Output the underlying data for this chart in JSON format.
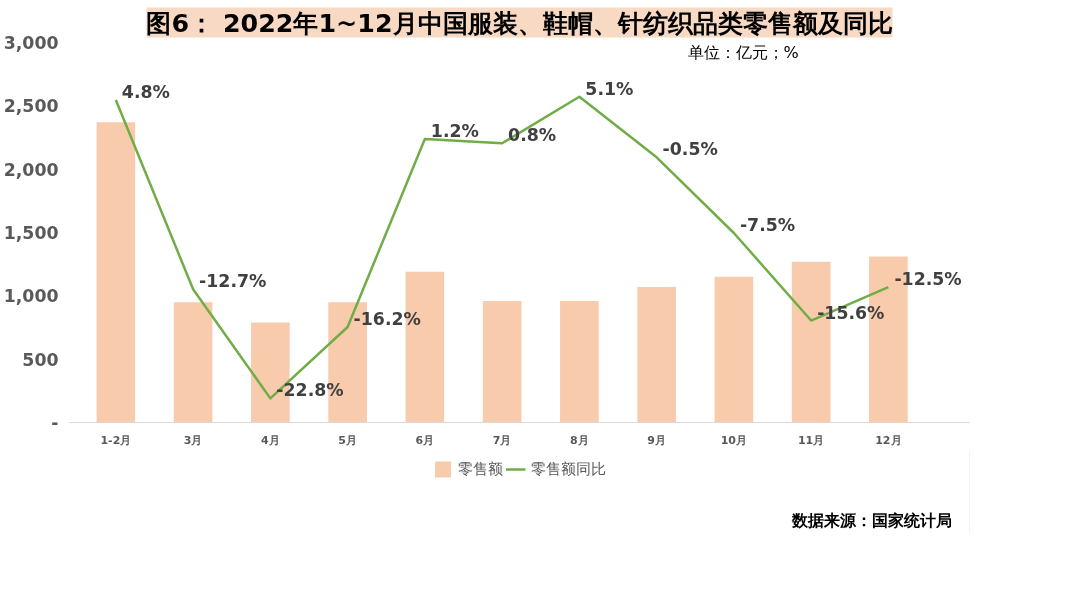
{
  "chart_data": {
    "type": "bar",
    "title": "图6： 2022年1~12月中国服装、鞋帽、针纺织品类零售额及同比",
    "categories": [
      "1-2月",
      "3月",
      "4月",
      "5月",
      "6月",
      "7月",
      "8月",
      "9月",
      "10月",
      "11月",
      "12月"
    ],
    "series": [
      {
        "name": "零售额",
        "color": "#f8cbad",
        "values": [
          2370,
          950,
          790,
          950,
          1190,
          960,
          960,
          1070,
          1150,
          1270,
          1310
        ]
      },
      {
        "name": "零售额同比",
        "type": "line",
        "axis": "y2",
        "color": "#70ad47",
        "values": [
          4.8,
          -12.7,
          -22.8,
          -16.2,
          1.2,
          0.8,
          5.1,
          -0.5,
          -7.5,
          -15.6,
          -12.5
        ],
        "value_labels": [
          "4.8%",
          "-12.7%",
          "-22.8%",
          "-16.2%",
          "1.2%",
          "0.8%",
          "5.1%",
          "-0.5%",
          "-7.5%",
          "-15.6%",
          "-12.5%"
        ]
      }
    ],
    "ylim": [
      0,
      3000
    ],
    "yticks": [
      {
        "value": 0,
        "label": "-"
      },
      {
        "value": 500,
        "label": "500"
      },
      {
        "value": 1000,
        "label": "1,000"
      },
      {
        "value": 1500,
        "label": "1,500"
      },
      {
        "value": 2000,
        "label": "2,000"
      },
      {
        "value": 2500,
        "label": "2,500"
      },
      {
        "value": 3000,
        "label": "3,000"
      }
    ],
    "grid": false,
    "legend": "bottom",
    "marker": "none",
    "annotations": [
      "单位：亿元；%",
      "数据来源：国家统计局"
    ]
  }
}
